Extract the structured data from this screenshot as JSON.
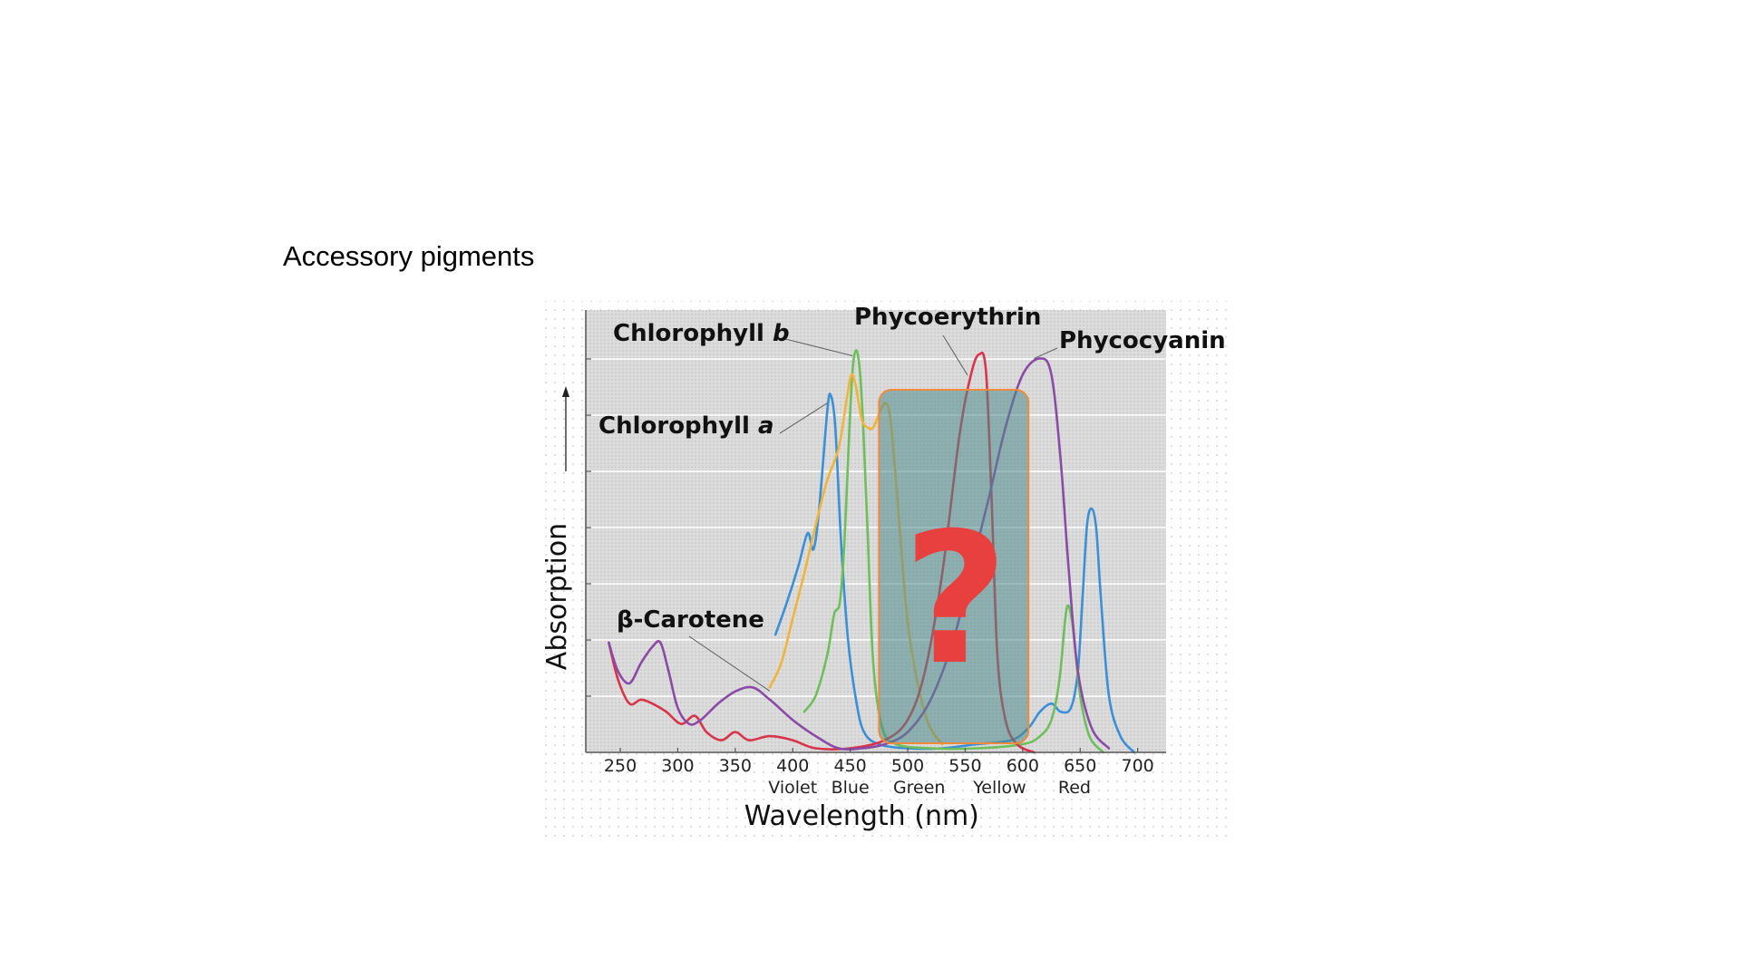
{
  "slide": {
    "title": "Accessory pigments"
  },
  "chart_data": {
    "type": "line",
    "title": "",
    "xlabel": "Wavelength (nm)",
    "ylabel": "Absorption",
    "xlim": [
      220,
      720
    ],
    "ylim": [
      0,
      1
    ],
    "x_ticks": [
      250,
      300,
      350,
      400,
      450,
      500,
      550,
      600,
      650,
      700
    ],
    "color_bands": [
      {
        "label": "Violet",
        "x": 400
      },
      {
        "label": "Blue",
        "x": 450
      },
      {
        "label": "Green",
        "x": 510
      },
      {
        "label": "Yellow",
        "x": 580
      },
      {
        "label": "Red",
        "x": 645
      }
    ],
    "grid": true,
    "highlight": {
      "x_range": [
        475,
        605
      ],
      "symbol": "?",
      "fill": "#4f8a8b",
      "border": "#f08a3c",
      "symbol_color": "#e8403e"
    },
    "series": [
      {
        "name": "Chlorophyll a",
        "color": "#3a8fd6",
        "points": [
          [
            385,
            0.29
          ],
          [
            395,
            0.37
          ],
          [
            405,
            0.46
          ],
          [
            413,
            0.54
          ],
          [
            418,
            0.5
          ],
          [
            423,
            0.6
          ],
          [
            430,
            0.84
          ],
          [
            433,
            0.88
          ],
          [
            437,
            0.8
          ],
          [
            442,
            0.52
          ],
          [
            448,
            0.28
          ],
          [
            455,
            0.13
          ],
          [
            462,
            0.05
          ],
          [
            475,
            0.02
          ],
          [
            500,
            0.01
          ],
          [
            530,
            0.01
          ],
          [
            560,
            0.02
          ],
          [
            590,
            0.03
          ],
          [
            605,
            0.06
          ],
          [
            615,
            0.1
          ],
          [
            625,
            0.12
          ],
          [
            633,
            0.1
          ],
          [
            642,
            0.11
          ],
          [
            648,
            0.2
          ],
          [
            652,
            0.38
          ],
          [
            656,
            0.56
          ],
          [
            660,
            0.6
          ],
          [
            664,
            0.55
          ],
          [
            668,
            0.38
          ],
          [
            675,
            0.14
          ],
          [
            685,
            0.04
          ],
          [
            697,
            0.0
          ]
        ]
      },
      {
        "name": "Chlorophyll b",
        "color": "#6cbf5a",
        "points": [
          [
            410,
            0.1
          ],
          [
            420,
            0.14
          ],
          [
            430,
            0.24
          ],
          [
            436,
            0.34
          ],
          [
            441,
            0.37
          ],
          [
            445,
            0.52
          ],
          [
            449,
            0.78
          ],
          [
            452,
            0.94
          ],
          [
            455,
            0.99
          ],
          [
            458,
            0.95
          ],
          [
            461,
            0.82
          ],
          [
            465,
            0.55
          ],
          [
            470,
            0.22
          ],
          [
            478,
            0.06
          ],
          [
            490,
            0.02
          ],
          [
            520,
            0.01
          ],
          [
            560,
            0.01
          ],
          [
            600,
            0.02
          ],
          [
            615,
            0.04
          ],
          [
            625,
            0.08
          ],
          [
            632,
            0.18
          ],
          [
            637,
            0.33
          ],
          [
            640,
            0.36
          ],
          [
            644,
            0.3
          ],
          [
            650,
            0.14
          ],
          [
            658,
            0.04
          ],
          [
            670,
            0.0
          ]
        ]
      },
      {
        "name": "β-Carotene",
        "color": "#f0b43a",
        "points": [
          [
            380,
            0.16
          ],
          [
            390,
            0.22
          ],
          [
            400,
            0.33
          ],
          [
            410,
            0.44
          ],
          [
            420,
            0.56
          ],
          [
            430,
            0.67
          ],
          [
            440,
            0.75
          ],
          [
            447,
            0.87
          ],
          [
            451,
            0.93
          ],
          [
            455,
            0.9
          ],
          [
            460,
            0.82
          ],
          [
            465,
            0.8
          ],
          [
            470,
            0.8
          ],
          [
            476,
            0.84
          ],
          [
            481,
            0.86
          ],
          [
            485,
            0.82
          ],
          [
            490,
            0.66
          ],
          [
            495,
            0.48
          ],
          [
            500,
            0.32
          ],
          [
            508,
            0.18
          ],
          [
            518,
            0.07
          ],
          [
            530,
            0.02
          ]
        ]
      },
      {
        "name": "Phycoerythrin",
        "color": "#d8344a",
        "points": [
          [
            240,
            0.27
          ],
          [
            248,
            0.18
          ],
          [
            258,
            0.12
          ],
          [
            268,
            0.13
          ],
          [
            278,
            0.12
          ],
          [
            290,
            0.1
          ],
          [
            303,
            0.07
          ],
          [
            315,
            0.09
          ],
          [
            325,
            0.05
          ],
          [
            338,
            0.03
          ],
          [
            350,
            0.05
          ],
          [
            362,
            0.03
          ],
          [
            380,
            0.04
          ],
          [
            400,
            0.03
          ],
          [
            420,
            0.01
          ],
          [
            450,
            0.01
          ],
          [
            480,
            0.03
          ],
          [
            500,
            0.08
          ],
          [
            515,
            0.2
          ],
          [
            530,
            0.44
          ],
          [
            545,
            0.78
          ],
          [
            555,
            0.93
          ],
          [
            562,
            0.98
          ],
          [
            568,
            0.94
          ],
          [
            573,
            0.62
          ],
          [
            578,
            0.24
          ],
          [
            585,
            0.08
          ],
          [
            595,
            0.02
          ],
          [
            610,
            0.0
          ]
        ]
      },
      {
        "name": "Phycocyanin",
        "color": "#8a4aa6",
        "points": [
          [
            240,
            0.27
          ],
          [
            248,
            0.2
          ],
          [
            258,
            0.17
          ],
          [
            268,
            0.22
          ],
          [
            278,
            0.26
          ],
          [
            285,
            0.27
          ],
          [
            292,
            0.2
          ],
          [
            300,
            0.11
          ],
          [
            310,
            0.07
          ],
          [
            320,
            0.08
          ],
          [
            335,
            0.12
          ],
          [
            350,
            0.15
          ],
          [
            365,
            0.16
          ],
          [
            380,
            0.13
          ],
          [
            400,
            0.08
          ],
          [
            420,
            0.04
          ],
          [
            440,
            0.01
          ],
          [
            460,
            0.01
          ],
          [
            480,
            0.02
          ],
          [
            500,
            0.05
          ],
          [
            520,
            0.13
          ],
          [
            540,
            0.28
          ],
          [
            555,
            0.45
          ],
          [
            570,
            0.62
          ],
          [
            585,
            0.8
          ],
          [
            600,
            0.93
          ],
          [
            615,
            0.97
          ],
          [
            625,
            0.93
          ],
          [
            633,
            0.72
          ],
          [
            640,
            0.45
          ],
          [
            648,
            0.2
          ],
          [
            660,
            0.06
          ],
          [
            675,
            0.01
          ]
        ]
      }
    ],
    "annotations": [
      {
        "text": "Chlorophyll ",
        "italic": "b",
        "series": "Chlorophyll b"
      },
      {
        "text": "Chlorophyll ",
        "italic": "a",
        "series": "Chlorophyll a"
      },
      {
        "text": "Phycoerythrin",
        "italic": "",
        "series": "Phycoerythrin"
      },
      {
        "text": "Phycocyanin",
        "italic": "",
        "series": "Phycocyanin"
      },
      {
        "text": "β-Carotene",
        "italic": "",
        "series": "β-Carotene"
      }
    ]
  }
}
